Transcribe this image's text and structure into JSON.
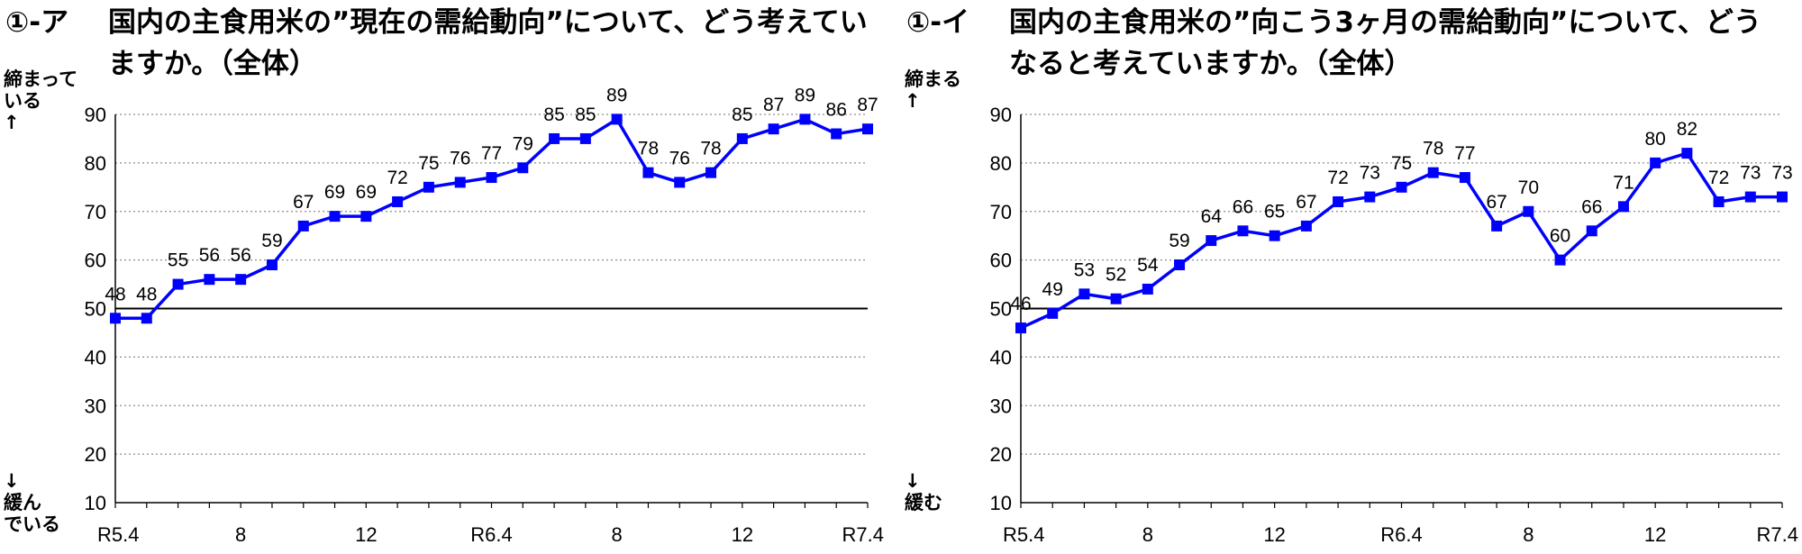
{
  "chart_data": [
    {
      "type": "line",
      "title_number": "①-ア",
      "title": "国内の主食用米の”現在の需給動向”について、どう考えていますか。（全体）",
      "ylabel_top": "締まって\nいる\n↑",
      "ylabel_bottom": "↓\n緩ん\nでいる",
      "ylim": [
        10,
        90
      ],
      "yticks": [
        "10",
        "20",
        "30",
        "40",
        "50",
        "60",
        "70",
        "80",
        "90"
      ],
      "reference_line": 50,
      "x_tick_labels": [
        "R5.4",
        "",
        "",
        "",
        "8",
        "",
        "",
        "",
        "12",
        "",
        "",
        "",
        "R6.4",
        "",
        "",
        "",
        "8",
        "",
        "",
        "",
        "12",
        "",
        "",
        "",
        "R7.4"
      ],
      "grid": "horizontal-dotted",
      "series": [
        {
          "color": "#0000ff",
          "values": [
            48,
            48,
            55,
            56,
            56,
            59,
            67,
            69,
            69,
            72,
            75,
            76,
            77,
            79,
            85,
            85,
            89,
            78,
            76,
            78,
            85,
            87,
            89,
            86,
            87
          ],
          "labels": [
            "48",
            "48",
            "55",
            "56",
            "56",
            "59",
            "67",
            "69",
            "69",
            "72",
            "75",
            "76",
            "77",
            "79",
            "85",
            "85",
            "89",
            "78",
            "76",
            "78",
            "85",
            "87",
            "89",
            "86",
            "87"
          ]
        }
      ]
    },
    {
      "type": "line",
      "title_number": "①-イ",
      "title": "国内の主食用米の”向こう3ヶ月の需給動向”について、どうなると考えていますか。（全体）",
      "ylabel_top": "締まる\n↑",
      "ylabel_bottom": "↓\n緩む",
      "ylim": [
        10,
        90
      ],
      "yticks": [
        "10",
        "20",
        "30",
        "40",
        "50",
        "60",
        "70",
        "80",
        "90"
      ],
      "reference_line": 50,
      "x_tick_labels": [
        "R5.4",
        "",
        "",
        "",
        "8",
        "",
        "",
        "",
        "12",
        "",
        "",
        "",
        "R6.4",
        "",
        "",
        "",
        "8",
        "",
        "",
        "",
        "12",
        "",
        "",
        "",
        "R7.4"
      ],
      "grid": "horizontal-dotted",
      "series": [
        {
          "color": "#0000ff",
          "values": [
            46,
            49,
            53,
            52,
            54,
            59,
            64,
            66,
            65,
            67,
            72,
            73,
            75,
            78,
            77,
            67,
            70,
            60,
            66,
            71,
            80,
            82,
            72,
            73,
            73
          ],
          "labels": [
            "46",
            "49",
            "53",
            "52",
            "54",
            "59",
            "64",
            "66",
            "65",
            "67",
            "72",
            "73",
            "75",
            "78",
            "77",
            "67",
            "70",
            "60",
            "66",
            "71",
            "80",
            "82",
            "72",
            "73",
            "73"
          ]
        }
      ]
    }
  ]
}
